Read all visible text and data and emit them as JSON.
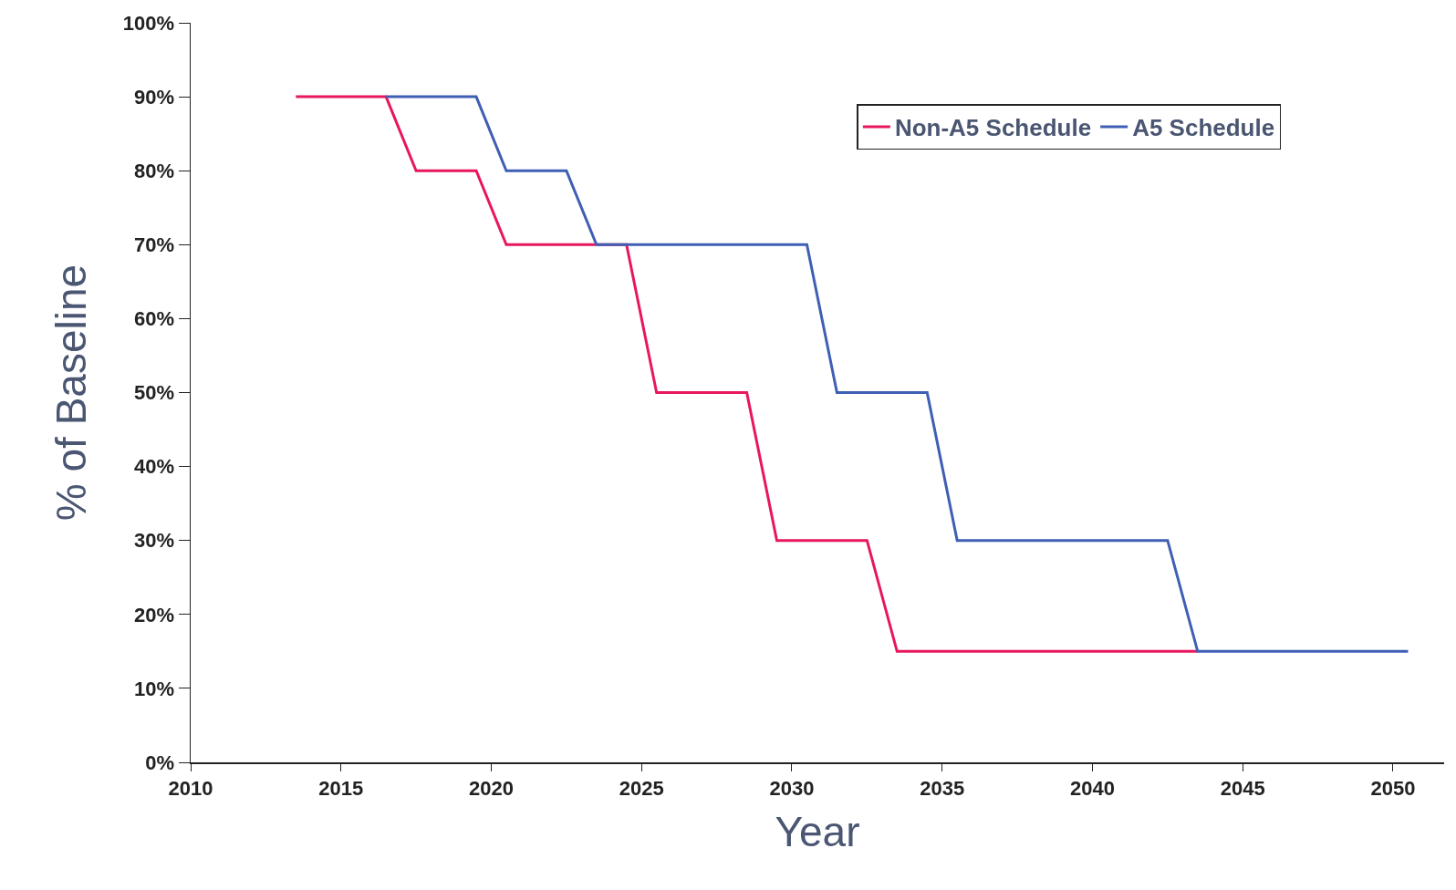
{
  "chart_data": {
    "type": "line",
    "xlabel": "Year",
    "ylabel": "% of Baseline",
    "xlim": [
      2010,
      2051.7
    ],
    "xticks": [
      2010,
      2015,
      2020,
      2025,
      2030,
      2035,
      2040,
      2045,
      2050
    ],
    "ylim": [
      0,
      100
    ],
    "yticks": [
      {
        "value": 0,
        "label": "0%"
      },
      {
        "value": 10,
        "label": "10%"
      },
      {
        "value": 20,
        "label": "20%"
      },
      {
        "value": 30,
        "label": "30%"
      },
      {
        "value": 40,
        "label": "40%"
      },
      {
        "value": 50,
        "label": "50%"
      },
      {
        "value": 60,
        "label": "60%"
      },
      {
        "value": 70,
        "label": "70%"
      },
      {
        "value": 80,
        "label": "80%"
      },
      {
        "value": 90,
        "label": "90%"
      },
      {
        "value": 100,
        "label": "100%"
      }
    ],
    "grid": false,
    "legend": "top right",
    "marker": "none",
    "line_style": "solid",
    "series": [
      {
        "name": "Non-A5 Schedule",
        "color": "#e8175d",
        "x": [
          2013.5,
          2016.5,
          2017.5,
          2019.5,
          2020.5,
          2023.5,
          2024.5,
          2025.5,
          2028.5,
          2029.5,
          2032.5,
          2033.5,
          2043.5
        ],
        "values": [
          90,
          90,
          80,
          80,
          70,
          70,
          70,
          50,
          50,
          30,
          30,
          15,
          15
        ]
      },
      {
        "name": "A5 Schedule",
        "color": "#3f5fb5",
        "x": [
          2016.5,
          2019.5,
          2020.5,
          2022.5,
          2023.5,
          2030.5,
          2031.5,
          2034.5,
          2035.5,
          2042.5,
          2043.5,
          2050.5
        ],
        "values": [
          90,
          90,
          80,
          80,
          70,
          70,
          50,
          50,
          30,
          30,
          15,
          15
        ]
      }
    ]
  }
}
